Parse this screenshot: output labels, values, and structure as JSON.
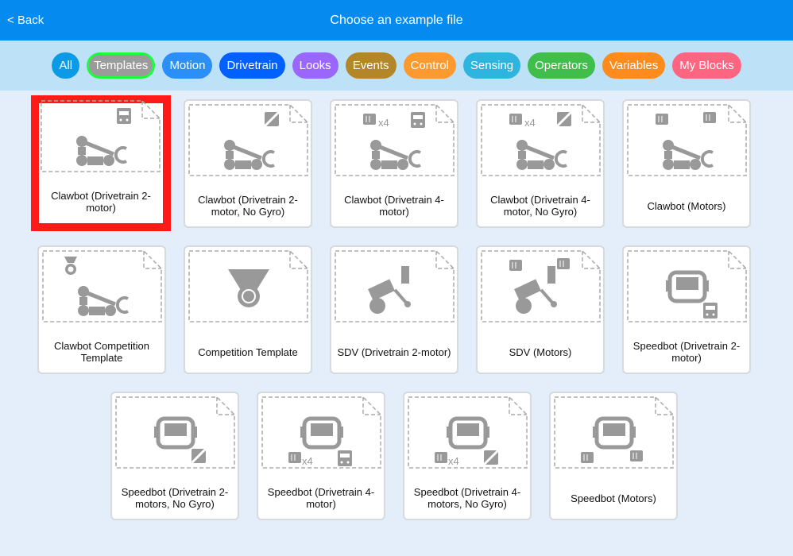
{
  "header": {
    "back_label": "< Back",
    "title": "Choose an example file"
  },
  "filters": [
    {
      "label": "All",
      "color": "#0b9be6",
      "selected": false
    },
    {
      "label": "Templates",
      "color": "#9b9b9b",
      "selected": true
    },
    {
      "label": "Motion",
      "color": "#2a8ff6",
      "selected": false
    },
    {
      "label": "Drivetrain",
      "color": "#0061fe",
      "selected": false
    },
    {
      "label": "Looks",
      "color": "#9a66fd",
      "selected": false
    },
    {
      "label": "Events",
      "color": "#b38727",
      "selected": false
    },
    {
      "label": "Control",
      "color": "#fd9a2f",
      "selected": false
    },
    {
      "label": "Sensing",
      "color": "#2db5df",
      "selected": false
    },
    {
      "label": "Operators",
      "color": "#3fbe4b",
      "selected": false
    },
    {
      "label": "Variables",
      "color": "#fe8b1b",
      "selected": false
    },
    {
      "label": "My Blocks",
      "color": "#fd6581",
      "selected": false
    }
  ],
  "examples": [
    {
      "label": "Clawbot (Drivetrain 2-motor)",
      "icon": "clawbot",
      "badges": [
        "brain"
      ],
      "selected": true
    },
    {
      "label": "Clawbot (Drivetrain 2-motor, No Gyro)",
      "icon": "clawbot",
      "badges": [
        "brain-nogyro"
      ]
    },
    {
      "label": "Clawbot (Drivetrain 4-motor)",
      "icon": "clawbot",
      "badges": [
        "motor-x4",
        "brain"
      ],
      "x4": "x4"
    },
    {
      "label": "Clawbot (Drivetrain 4-motor, No Gyro)",
      "icon": "clawbot",
      "badges": [
        "motor-x4",
        "brain-nogyro"
      ],
      "x4": "x4"
    },
    {
      "label": "Clawbot (Motors)",
      "icon": "clawbot",
      "badges": [
        "motor",
        "motor"
      ]
    },
    {
      "label": "Clawbot Competition Template",
      "icon": "clawbot-medal",
      "badges": []
    },
    {
      "label": "Competition Template",
      "icon": "medal",
      "badges": []
    },
    {
      "label": "SDV (Drivetrain 2-motor)",
      "icon": "sdv",
      "badges": []
    },
    {
      "label": "SDV (Motors)",
      "icon": "sdv",
      "badges": [
        "motor",
        "motor"
      ]
    },
    {
      "label": "Speedbot (Drivetrain 2-motor)",
      "icon": "speedbot",
      "badges": [
        "brain-bottom"
      ]
    },
    {
      "label": "Speedbot (Drivetrain 2-motors, No Gyro)",
      "icon": "speedbot",
      "badges": [
        "nogyro-bottom"
      ]
    },
    {
      "label": "Speedbot (Drivetrain 4-motor)",
      "icon": "speedbot",
      "badges": [
        "motor-x4-bottom",
        "brain-bottom"
      ],
      "x4": "x4"
    },
    {
      "label": "Speedbot (Drivetrain 4-motors, No Gyro)",
      "icon": "speedbot",
      "badges": [
        "motor-x4-bottom",
        "nogyro-bottom"
      ],
      "x4": "x4"
    },
    {
      "label": "Speedbot (Motors)",
      "icon": "speedbot",
      "badges": [
        "motor-bottom",
        "motor-bottom"
      ]
    }
  ]
}
